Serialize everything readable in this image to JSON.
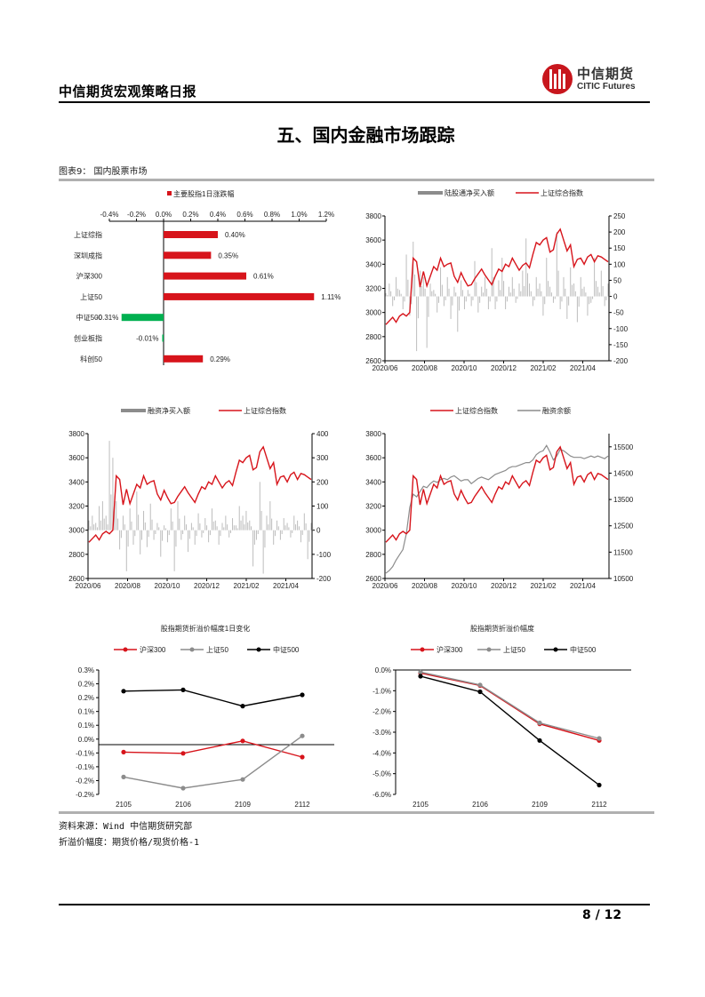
{
  "header": {
    "report_title": "中信期货宏观策略日报",
    "logo_cn": "中信期货",
    "logo_en": "CITIC Futures"
  },
  "section_title": "五、国内金融市场跟踪",
  "figure_label": "图表9： 国内股票市场",
  "notes": {
    "source": "资料来源：Wind 中信期货研究部",
    "definition": "折溢价幅度：期货价格/现货价格-1"
  },
  "footer": {
    "page": "8 / 12"
  },
  "colors": {
    "red": "#d7141b",
    "green": "#00b050",
    "gray": "#8c8c8c",
    "lightgray": "#bdbdbd",
    "black": "#000000"
  },
  "chart_data": [
    {
      "id": "index_change",
      "type": "bar",
      "orientation": "horizontal",
      "title": "",
      "legend": [
        "主要股指1日涨跌幅"
      ],
      "categories": [
        "上证综指",
        "深圳成指",
        "沪深300",
        "上证50",
        "中证500",
        "创业板指",
        "科创50"
      ],
      "values": [
        0.4,
        0.35,
        0.61,
        1.11,
        -0.31,
        -0.01,
        0.29
      ],
      "value_labels": [
        "0.40%",
        "0.35%",
        "0.61%",
        "1.11%",
        "-0.31%",
        "-0.01%",
        "0.29%"
      ],
      "xlim": [
        -0.4,
        1.2
      ],
      "xticks": [
        "-0.4%",
        "-0.2%",
        "0.0%",
        "0.2%",
        "0.4%",
        "0.6%",
        "0.8%",
        "1.0%",
        "1.2%"
      ],
      "legend_position": "top"
    },
    {
      "id": "northbound",
      "type": "bar+line",
      "legend": [
        "陆股通净买入额",
        "上证综合指数"
      ],
      "x_ticks": [
        "2020/06",
        "2020/08",
        "2020/10",
        "2020/12",
        "2021/02",
        "2021/04"
      ],
      "y_left": {
        "ticks": [
          2600,
          2800,
          3000,
          3200,
          3400,
          3600,
          3800
        ],
        "lim": [
          2600,
          3800
        ]
      },
      "y_right": {
        "ticks": [
          -200,
          -150,
          -100,
          -50,
          0,
          50,
          100,
          150,
          200,
          250
        ],
        "lim": [
          -200,
          250
        ]
      },
      "index_line": [
        2900,
        2930,
        2960,
        2920,
        2970,
        2990,
        2970,
        3000,
        3450,
        3420,
        3210,
        3340,
        3220,
        3300,
        3380,
        3350,
        3450,
        3380,
        3400,
        3410,
        3300,
        3250,
        3330,
        3270,
        3220,
        3230,
        3280,
        3320,
        3360,
        3310,
        3270,
        3230,
        3300,
        3360,
        3340,
        3400,
        3380,
        3450,
        3400,
        3350,
        3390,
        3410,
        3370,
        3480,
        3580,
        3560,
        3600,
        3620,
        3500,
        3520,
        3650,
        3690,
        3600,
        3510,
        3560,
        3380,
        3440,
        3450,
        3400,
        3460,
        3480,
        3420,
        3470,
        3460,
        3440,
        3420
      ],
      "flow_bars": [
        10,
        40,
        -30,
        60,
        20,
        -40,
        130,
        -60,
        170,
        -170,
        80,
        60,
        -160,
        40,
        20,
        -50,
        90,
        -30,
        60,
        -70,
        30,
        -110,
        50,
        -40,
        20,
        -30,
        110,
        -50,
        30,
        60,
        -40,
        150,
        -40,
        50,
        120,
        -40,
        30,
        60,
        -20,
        40,
        80,
        180,
        40,
        -30,
        60,
        40,
        -60,
        120,
        30,
        -20,
        200,
        -40,
        60,
        -70,
        90,
        40,
        -80,
        60,
        30,
        -60,
        -20,
        120,
        30,
        80,
        -30,
        40
      ]
    },
    {
      "id": "margin_flow",
      "type": "bar+line",
      "legend": [
        "融资净买入额",
        "上证综合指数"
      ],
      "x_ticks": [
        "2020/06",
        "2020/08",
        "2020/10",
        "2020/12",
        "2021/02",
        "2021/04"
      ],
      "y_left": {
        "ticks": [
          2600,
          2800,
          3000,
          3200,
          3400,
          3600,
          3800
        ],
        "lim": [
          2600,
          3800
        ]
      },
      "y_right": {
        "ticks": [
          -200,
          -100,
          0,
          100,
          200,
          300,
          400
        ],
        "lim": [
          -200,
          400
        ]
      },
      "index_line": [
        2900,
        2930,
        2960,
        2920,
        2970,
        2990,
        2970,
        3000,
        3450,
        3420,
        3210,
        3340,
        3220,
        3300,
        3380,
        3350,
        3450,
        3380,
        3400,
        3410,
        3300,
        3250,
        3330,
        3270,
        3220,
        3230,
        3280,
        3320,
        3360,
        3310,
        3270,
        3230,
        3300,
        3360,
        3340,
        3400,
        3380,
        3450,
        3400,
        3350,
        3390,
        3410,
        3370,
        3480,
        3580,
        3560,
        3600,
        3620,
        3500,
        3520,
        3650,
        3690,
        3600,
        3510,
        3560,
        3380,
        3440,
        3450,
        3400,
        3460,
        3480,
        3420,
        3470,
        3460,
        3440,
        3420
      ],
      "flow_bars": [
        40,
        60,
        30,
        100,
        120,
        60,
        370,
        300,
        120,
        -80,
        60,
        -170,
        90,
        -60,
        160,
        -100,
        80,
        -70,
        110,
        -40,
        30,
        -110,
        20,
        -50,
        90,
        -170,
        120,
        -40,
        60,
        -90,
        30,
        -60,
        70,
        -30,
        50,
        -50,
        90,
        40,
        -60,
        30,
        60,
        -30,
        50,
        20,
        100,
        60,
        80,
        40,
        -150,
        -40,
        200,
        -180,
        60,
        120,
        -60,
        40,
        -40,
        50,
        30,
        -30,
        60,
        40,
        -50,
        70,
        -120,
        30
      ]
    },
    {
      "id": "margin_balance",
      "type": "line",
      "legend": [
        "上证综合指数",
        "融资余额"
      ],
      "x_ticks": [
        "2020/06",
        "2020/08",
        "2020/10",
        "2020/12",
        "2021/02",
        "2021/04"
      ],
      "y_left": {
        "ticks": [
          2600,
          2800,
          3000,
          3200,
          3400,
          3600,
          3800
        ],
        "lim": [
          2600,
          3800
        ]
      },
      "y_right": {
        "ticks": [
          10500,
          11500,
          12500,
          13500,
          14500,
          15500
        ],
        "lim": [
          10500,
          16000
        ]
      },
      "index_line": [
        2900,
        2930,
        2960,
        2920,
        2970,
        2990,
        2970,
        3000,
        3450,
        3420,
        3210,
        3340,
        3220,
        3300,
        3380,
        3350,
        3450,
        3380,
        3400,
        3410,
        3300,
        3250,
        3330,
        3270,
        3220,
        3230,
        3280,
        3320,
        3360,
        3310,
        3270,
        3230,
        3300,
        3360,
        3340,
        3400,
        3380,
        3450,
        3400,
        3350,
        3390,
        3410,
        3370,
        3480,
        3580,
        3560,
        3600,
        3620,
        3500,
        3520,
        3650,
        3690,
        3600,
        3510,
        3560,
        3380,
        3440,
        3450,
        3400,
        3460,
        3480,
        3420,
        3470,
        3460,
        3440,
        3420
      ],
      "balance_line": [
        10700,
        10800,
        10950,
        11200,
        11400,
        11600,
        12200,
        13200,
        13700,
        13600,
        13800,
        14000,
        13950,
        14100,
        14200,
        14150,
        14250,
        14300,
        14250,
        14350,
        14400,
        14300,
        14200,
        14250,
        14250,
        14100,
        14200,
        14300,
        14350,
        14300,
        14250,
        14350,
        14450,
        14500,
        14550,
        14600,
        14700,
        14750,
        14750,
        14800,
        14850,
        14900,
        14900,
        15000,
        15200,
        15300,
        15350,
        15550,
        15300,
        15000,
        15150,
        15400,
        15350,
        15250,
        15150,
        15100,
        15100,
        15100,
        15050,
        15100,
        15150,
        15100,
        15150,
        15100,
        15050,
        15150
      ]
    },
    {
      "id": "basis_change",
      "type": "line",
      "title": "股指期货折溢价幅度1日变化",
      "legend": [
        "沪深300",
        "上证50",
        "中证500"
      ],
      "categories": [
        "2105",
        "2106",
        "2109",
        "2112"
      ],
      "series": [
        {
          "name": "沪深300",
          "values": [
            -0.03,
            -0.035,
            0.015,
            -0.05
          ]
        },
        {
          "name": "上证50",
          "values": [
            -0.13,
            -0.175,
            -0.14,
            0.035
          ]
        },
        {
          "name": "中证500",
          "values": [
            0.215,
            0.22,
            0.155,
            0.2
          ]
        }
      ],
      "ylim": [
        -0.2,
        0.3
      ],
      "yticks": [
        "0.3%",
        "0.2%",
        "0.2%",
        "0.1%",
        "0.1%",
        "0.0%",
        "-0.1%",
        "-0.1%",
        "-0.2%",
        "-0.2%"
      ]
    },
    {
      "id": "basis_level",
      "type": "line",
      "title": "股指期货折溢价幅度",
      "legend": [
        "沪深300",
        "上证50",
        "中证500"
      ],
      "categories": [
        "2105",
        "2106",
        "2109",
        "2112"
      ],
      "series": [
        {
          "name": "沪深300",
          "values": [
            -0.15,
            -0.75,
            -2.6,
            -3.4
          ]
        },
        {
          "name": "上证50",
          "values": [
            -0.1,
            -0.72,
            -2.55,
            -3.3
          ]
        },
        {
          "name": "中证500",
          "values": [
            -0.3,
            -1.05,
            -3.4,
            -5.55
          ]
        }
      ],
      "ylim": [
        -6.0,
        0.0
      ],
      "yticks": [
        "0.0%",
        "-1.0%",
        "-2.0%",
        "-3.0%",
        "-4.0%",
        "-5.0%",
        "-6.0%"
      ]
    }
  ]
}
